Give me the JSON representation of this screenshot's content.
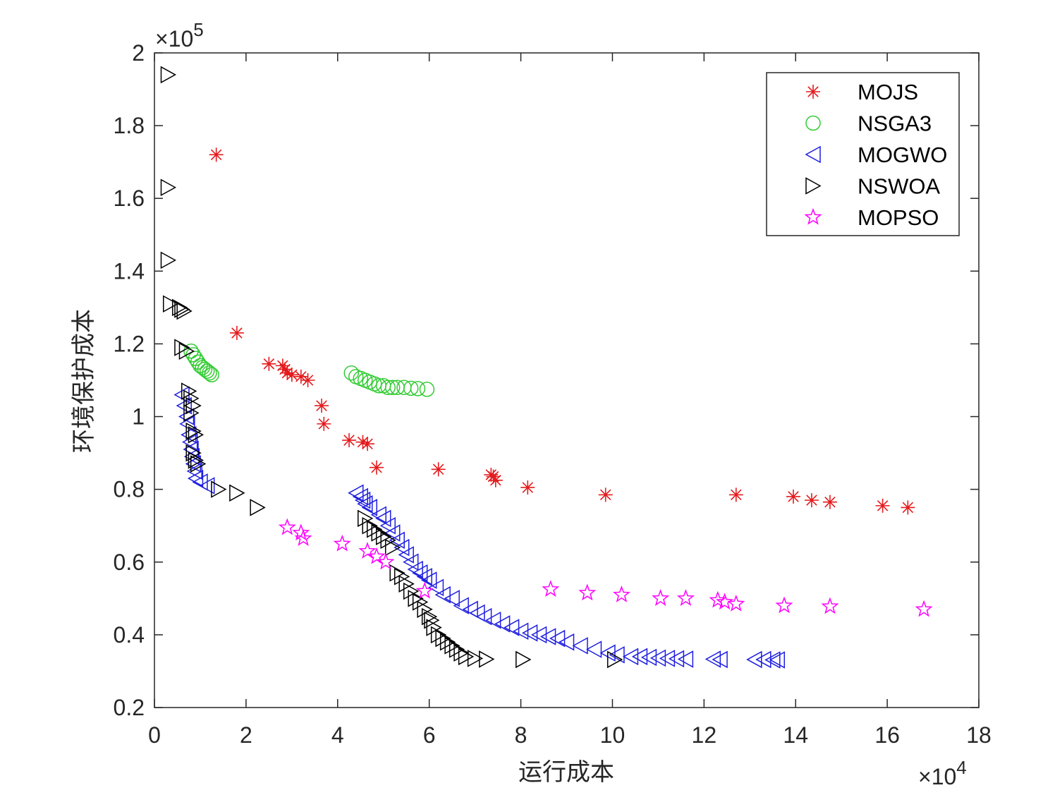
{
  "chart_data": {
    "type": "scatter",
    "title": "",
    "xlabel": "运行成本",
    "ylabel": "环境保护成本",
    "x_multiplier": {
      "base": "10",
      "exponent": "4"
    },
    "y_multiplier": {
      "base": "10",
      "exponent": "5"
    },
    "xlim": [
      0,
      18
    ],
    "ylim": [
      0.2,
      2
    ],
    "xticks": [
      "0",
      "2",
      "4",
      "6",
      "8",
      "10",
      "12",
      "14",
      "16",
      "18"
    ],
    "yticks": [
      "0.2",
      "0.4",
      "0.6",
      "0.8",
      "1",
      "1.2",
      "1.4",
      "1.6",
      "1.8",
      "2"
    ],
    "grid": false,
    "legend_position": "top-right",
    "series": [
      {
        "name": "MOJS",
        "marker": "asterisk",
        "color": "#e41a1c",
        "points": [
          [
            1.35,
            1.72
          ],
          [
            1.8,
            1.23
          ],
          [
            2.5,
            1.145
          ],
          [
            2.8,
            1.14
          ],
          [
            2.85,
            1.13
          ],
          [
            2.9,
            1.12
          ],
          [
            3.0,
            1.115
          ],
          [
            3.2,
            1.11
          ],
          [
            3.35,
            1.1
          ],
          [
            3.65,
            1.03
          ],
          [
            3.7,
            0.98
          ],
          [
            4.25,
            0.935
          ],
          [
            4.55,
            0.93
          ],
          [
            4.65,
            0.925
          ],
          [
            4.85,
            0.86
          ],
          [
            6.2,
            0.855
          ],
          [
            7.35,
            0.84
          ],
          [
            7.4,
            0.835
          ],
          [
            7.45,
            0.825
          ],
          [
            8.15,
            0.805
          ],
          [
            9.85,
            0.785
          ],
          [
            12.7,
            0.785
          ],
          [
            13.95,
            0.78
          ],
          [
            14.35,
            0.77
          ],
          [
            14.75,
            0.765
          ],
          [
            15.9,
            0.755
          ],
          [
            16.45,
            0.75
          ]
        ]
      },
      {
        "name": "NSGA3",
        "marker": "circle",
        "color": "#33cc33",
        "points": [
          [
            0.8,
            1.18
          ],
          [
            0.85,
            1.17
          ],
          [
            0.9,
            1.16
          ],
          [
            0.95,
            1.15
          ],
          [
            1.0,
            1.14
          ],
          [
            1.05,
            1.135
          ],
          [
            1.1,
            1.13
          ],
          [
            1.15,
            1.125
          ],
          [
            1.2,
            1.12
          ],
          [
            1.25,
            1.115
          ],
          [
            4.3,
            1.12
          ],
          [
            4.4,
            1.11
          ],
          [
            4.5,
            1.105
          ],
          [
            4.6,
            1.1
          ],
          [
            4.7,
            1.095
          ],
          [
            4.8,
            1.09
          ],
          [
            4.9,
            1.085
          ],
          [
            5.0,
            1.085
          ],
          [
            5.1,
            1.08
          ],
          [
            5.2,
            1.08
          ],
          [
            5.3,
            1.08
          ],
          [
            5.45,
            1.08
          ],
          [
            5.6,
            1.078
          ],
          [
            5.75,
            1.077
          ],
          [
            5.95,
            1.075
          ]
        ]
      },
      {
        "name": "MOGWO",
        "marker": "triangle-left",
        "color": "#1f1fe0",
        "points": [
          [
            0.6,
            1.06
          ],
          [
            0.65,
            1.03
          ],
          [
            0.7,
            1.0
          ],
          [
            0.72,
            0.98
          ],
          [
            0.75,
            0.95
          ],
          [
            0.78,
            0.93
          ],
          [
            0.8,
            0.91
          ],
          [
            0.82,
            0.89
          ],
          [
            0.85,
            0.87
          ],
          [
            0.88,
            0.85
          ],
          [
            0.9,
            0.83
          ],
          [
            1.0,
            0.82
          ],
          [
            1.15,
            0.81
          ],
          [
            4.4,
            0.79
          ],
          [
            4.5,
            0.78
          ],
          [
            4.55,
            0.77
          ],
          [
            4.6,
            0.76
          ],
          [
            4.7,
            0.75
          ],
          [
            4.9,
            0.73
          ],
          [
            5.0,
            0.72
          ],
          [
            5.1,
            0.7
          ],
          [
            5.2,
            0.68
          ],
          [
            5.3,
            0.66
          ],
          [
            5.4,
            0.64
          ],
          [
            5.5,
            0.62
          ],
          [
            5.6,
            0.6
          ],
          [
            5.7,
            0.58
          ],
          [
            5.8,
            0.57
          ],
          [
            5.9,
            0.56
          ],
          [
            6.0,
            0.55
          ],
          [
            6.15,
            0.53
          ],
          [
            6.3,
            0.51
          ],
          [
            6.5,
            0.5
          ],
          [
            6.7,
            0.48
          ],
          [
            6.9,
            0.47
          ],
          [
            7.05,
            0.46
          ],
          [
            7.2,
            0.45
          ],
          [
            7.4,
            0.44
          ],
          [
            7.6,
            0.43
          ],
          [
            7.8,
            0.42
          ],
          [
            8.0,
            0.41
          ],
          [
            8.2,
            0.405
          ],
          [
            8.4,
            0.4
          ],
          [
            8.6,
            0.395
          ],
          [
            8.8,
            0.39
          ],
          [
            9.0,
            0.38
          ],
          [
            9.3,
            0.37
          ],
          [
            9.6,
            0.36
          ],
          [
            9.9,
            0.35
          ],
          [
            10.1,
            0.345
          ],
          [
            10.4,
            0.34
          ],
          [
            10.6,
            0.34
          ],
          [
            10.8,
            0.338
          ],
          [
            11.0,
            0.336
          ],
          [
            11.2,
            0.335
          ],
          [
            11.4,
            0.334
          ],
          [
            11.6,
            0.333
          ],
          [
            12.2,
            0.333
          ],
          [
            12.35,
            0.332
          ],
          [
            13.1,
            0.332
          ],
          [
            13.3,
            0.332
          ],
          [
            13.5,
            0.331
          ],
          [
            13.6,
            0.331
          ]
        ]
      },
      {
        "name": "NSWOA",
        "marker": "triangle-right",
        "color": "#000000",
        "points": [
          [
            0.3,
            1.94
          ],
          [
            0.3,
            1.63
          ],
          [
            0.3,
            1.43
          ],
          [
            0.35,
            1.31
          ],
          [
            0.55,
            1.3
          ],
          [
            0.6,
            1.295
          ],
          [
            0.65,
            1.29
          ],
          [
            0.6,
            1.19
          ],
          [
            0.7,
            1.18
          ],
          [
            0.75,
            1.07
          ],
          [
            0.8,
            1.05
          ],
          [
            0.85,
            1.03
          ],
          [
            0.8,
            1.01
          ],
          [
            0.85,
            0.96
          ],
          [
            0.9,
            0.95
          ],
          [
            0.85,
            0.9
          ],
          [
            0.9,
            0.88
          ],
          [
            0.95,
            0.87
          ],
          [
            1.4,
            0.8
          ],
          [
            1.8,
            0.79
          ],
          [
            2.25,
            0.75
          ],
          [
            4.6,
            0.72
          ],
          [
            4.7,
            0.7
          ],
          [
            4.8,
            0.69
          ],
          [
            4.9,
            0.68
          ],
          [
            5.0,
            0.67
          ],
          [
            5.1,
            0.66
          ],
          [
            5.2,
            0.64
          ],
          [
            5.3,
            0.57
          ],
          [
            5.4,
            0.56
          ],
          [
            5.5,
            0.54
          ],
          [
            5.6,
            0.52
          ],
          [
            5.7,
            0.5
          ],
          [
            5.8,
            0.49
          ],
          [
            5.9,
            0.47
          ],
          [
            6.0,
            0.45
          ],
          [
            6.05,
            0.44
          ],
          [
            6.1,
            0.42
          ],
          [
            6.2,
            0.4
          ],
          [
            6.3,
            0.39
          ],
          [
            6.4,
            0.38
          ],
          [
            6.5,
            0.37
          ],
          [
            6.6,
            0.36
          ],
          [
            6.7,
            0.35
          ],
          [
            6.8,
            0.34
          ],
          [
            7.0,
            0.335
          ],
          [
            7.25,
            0.333
          ],
          [
            8.05,
            0.332
          ],
          [
            10.05,
            0.332
          ]
        ]
      },
      {
        "name": "MOPSO",
        "marker": "pentagram",
        "color": "#ff00ff",
        "points": [
          [
            2.9,
            0.695
          ],
          [
            3.2,
            0.68
          ],
          [
            3.25,
            0.665
          ],
          [
            4.1,
            0.65
          ],
          [
            4.65,
            0.63
          ],
          [
            4.85,
            0.615
          ],
          [
            5.05,
            0.6
          ],
          [
            5.9,
            0.52
          ],
          [
            8.65,
            0.525
          ],
          [
            9.45,
            0.515
          ],
          [
            10.2,
            0.51
          ],
          [
            11.05,
            0.5
          ],
          [
            11.6,
            0.5
          ],
          [
            12.3,
            0.495
          ],
          [
            12.45,
            0.49
          ],
          [
            12.7,
            0.485
          ],
          [
            13.75,
            0.48
          ],
          [
            14.75,
            0.478
          ],
          [
            16.8,
            0.47
          ]
        ]
      }
    ]
  }
}
